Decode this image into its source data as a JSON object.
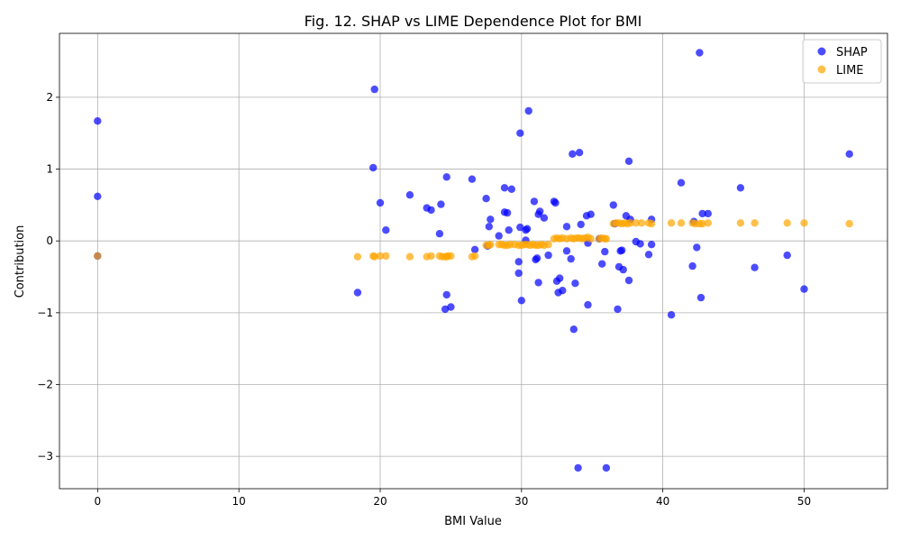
{
  "chart_data": {
    "type": "scatter",
    "title": "Fig. 12. SHAP vs LIME Dependence Plot for BMI",
    "xlabel": "BMI Value",
    "ylabel": "Contribution",
    "xlim": [
      -2.7,
      55.9
    ],
    "ylim": [
      -3.45,
      2.89
    ],
    "xticks": [
      0,
      10,
      20,
      30,
      40,
      50
    ],
    "yticks": [
      -3,
      -2,
      -1,
      0,
      1,
      2
    ],
    "grid": true,
    "legend_position": "top-right",
    "series": [
      {
        "name": "SHAP",
        "color": "#0000ff",
        "points": [
          [
            0,
            1.67
          ],
          [
            0,
            0.62
          ],
          [
            0,
            -0.21
          ],
          [
            18.4,
            -0.72
          ],
          [
            19.5,
            1.02
          ],
          [
            19.6,
            2.11
          ],
          [
            20.0,
            0.53
          ],
          [
            20.4,
            0.15
          ],
          [
            22.1,
            0.64
          ],
          [
            23.3,
            0.46
          ],
          [
            23.6,
            0.43
          ],
          [
            24.2,
            0.1
          ],
          [
            24.3,
            0.51
          ],
          [
            24.6,
            -0.95
          ],
          [
            24.7,
            0.89
          ],
          [
            24.7,
            -0.75
          ],
          [
            25.0,
            -0.92
          ],
          [
            26.5,
            0.86
          ],
          [
            26.7,
            -0.12
          ],
          [
            27.5,
            0.59
          ],
          [
            27.6,
            -0.07
          ],
          [
            27.7,
            0.2
          ],
          [
            27.8,
            0.3
          ],
          [
            28.4,
            0.07
          ],
          [
            28.8,
            0.74
          ],
          [
            28.8,
            0.4
          ],
          [
            29.0,
            0.39
          ],
          [
            29.1,
            0.15
          ],
          [
            29.3,
            0.72
          ],
          [
            29.8,
            -0.29
          ],
          [
            29.8,
            -0.45
          ],
          [
            29.9,
            0.19
          ],
          [
            29.9,
            1.5
          ],
          [
            30.0,
            -0.83
          ],
          [
            30.3,
            0.01
          ],
          [
            30.3,
            0.15
          ],
          [
            30.4,
            0.17
          ],
          [
            30.5,
            1.81
          ],
          [
            30.9,
            0.55
          ],
          [
            31.0,
            -0.26
          ],
          [
            31.1,
            -0.24
          ],
          [
            31.2,
            0.37
          ],
          [
            31.2,
            -0.58
          ],
          [
            31.3,
            0.41
          ],
          [
            31.6,
            0.32
          ],
          [
            31.9,
            -0.2
          ],
          [
            32.3,
            0.55
          ],
          [
            32.4,
            0.53
          ],
          [
            32.5,
            -0.56
          ],
          [
            32.6,
            -0.72
          ],
          [
            32.7,
            -0.52
          ],
          [
            32.9,
            -0.69
          ],
          [
            33.2,
            0.2
          ],
          [
            33.2,
            -0.14
          ],
          [
            33.5,
            -0.25
          ],
          [
            33.6,
            1.21
          ],
          [
            33.7,
            -1.23
          ],
          [
            33.8,
            -0.59
          ],
          [
            34.0,
            -3.16
          ],
          [
            34.1,
            1.23
          ],
          [
            34.2,
            0.23
          ],
          [
            34.6,
            0.35
          ],
          [
            34.7,
            -0.03
          ],
          [
            34.7,
            -0.89
          ],
          [
            34.9,
            0.37
          ],
          [
            35.5,
            0.03
          ],
          [
            35.7,
            -0.32
          ],
          [
            35.9,
            -0.15
          ],
          [
            36.0,
            -3.16
          ],
          [
            36.5,
            0.5
          ],
          [
            36.6,
            0.24
          ],
          [
            36.8,
            -0.95
          ],
          [
            36.9,
            -0.36
          ],
          [
            37.0,
            -0.14
          ],
          [
            37.1,
            -0.13
          ],
          [
            37.2,
            -0.4
          ],
          [
            37.4,
            0.35
          ],
          [
            37.6,
            1.11
          ],
          [
            37.6,
            -0.55
          ],
          [
            37.7,
            0.3
          ],
          [
            38.1,
            -0.01
          ],
          [
            38.4,
            -0.04
          ],
          [
            39.0,
            -0.19
          ],
          [
            39.2,
            -0.05
          ],
          [
            39.2,
            0.3
          ],
          [
            40.6,
            -1.03
          ],
          [
            41.3,
            0.81
          ],
          [
            42.1,
            -0.35
          ],
          [
            42.2,
            0.27
          ],
          [
            42.4,
            -0.09
          ],
          [
            42.6,
            2.62
          ],
          [
            42.7,
            -0.79
          ],
          [
            42.8,
            0.38
          ],
          [
            43.2,
            0.38
          ],
          [
            45.5,
            0.74
          ],
          [
            46.5,
            -0.37
          ],
          [
            48.8,
            -0.2
          ],
          [
            50.0,
            -0.67
          ],
          [
            53.2,
            1.21
          ]
        ]
      },
      {
        "name": "LIME",
        "color": "#ffa500",
        "points": [
          [
            0,
            -0.21
          ],
          [
            18.4,
            -0.22
          ],
          [
            19.5,
            -0.21
          ],
          [
            19.6,
            -0.22
          ],
          [
            20.0,
            -0.21
          ],
          [
            20.4,
            -0.21
          ],
          [
            22.1,
            -0.22
          ],
          [
            23.3,
            -0.22
          ],
          [
            23.6,
            -0.21
          ],
          [
            24.2,
            -0.21
          ],
          [
            24.4,
            -0.22
          ],
          [
            24.6,
            -0.22
          ],
          [
            24.7,
            -0.22
          ],
          [
            24.8,
            -0.21
          ],
          [
            25.0,
            -0.21
          ],
          [
            26.5,
            -0.22
          ],
          [
            26.7,
            -0.21
          ],
          [
            27.5,
            -0.06
          ],
          [
            27.7,
            -0.06
          ],
          [
            27.8,
            -0.05
          ],
          [
            28.4,
            -0.05
          ],
          [
            28.6,
            -0.05
          ],
          [
            28.8,
            -0.06
          ],
          [
            29.0,
            -0.06
          ],
          [
            29.2,
            -0.05
          ],
          [
            29.5,
            -0.05
          ],
          [
            29.8,
            -0.06
          ],
          [
            30.0,
            -0.06
          ],
          [
            30.2,
            -0.05
          ],
          [
            30.4,
            -0.05
          ],
          [
            30.6,
            -0.06
          ],
          [
            30.8,
            -0.05
          ],
          [
            31.0,
            -0.06
          ],
          [
            31.2,
            -0.06
          ],
          [
            31.4,
            -0.05
          ],
          [
            31.6,
            -0.06
          ],
          [
            31.9,
            -0.05
          ],
          [
            32.3,
            0.03
          ],
          [
            32.5,
            0.04
          ],
          [
            32.7,
            0.03
          ],
          [
            32.9,
            0.04
          ],
          [
            33.2,
            0.03
          ],
          [
            33.5,
            0.04
          ],
          [
            33.7,
            0.03
          ],
          [
            33.9,
            0.04
          ],
          [
            34.1,
            0.04
          ],
          [
            34.3,
            0.03
          ],
          [
            34.5,
            0.04
          ],
          [
            34.7,
            0.05
          ],
          [
            34.9,
            0.03
          ],
          [
            35.5,
            0.03
          ],
          [
            35.7,
            0.04
          ],
          [
            35.9,
            0.03
          ],
          [
            36.0,
            0.03
          ],
          [
            36.5,
            0.24
          ],
          [
            36.7,
            0.25
          ],
          [
            36.9,
            0.25
          ],
          [
            37.1,
            0.24
          ],
          [
            37.3,
            0.25
          ],
          [
            37.5,
            0.24
          ],
          [
            37.7,
            0.25
          ],
          [
            38.1,
            0.25
          ],
          [
            38.5,
            0.25
          ],
          [
            39.0,
            0.25
          ],
          [
            39.2,
            0.24
          ],
          [
            40.6,
            0.25
          ],
          [
            41.3,
            0.25
          ],
          [
            42.1,
            0.25
          ],
          [
            42.3,
            0.24
          ],
          [
            42.6,
            0.24
          ],
          [
            42.8,
            0.24
          ],
          [
            43.2,
            0.25
          ],
          [
            45.5,
            0.25
          ],
          [
            46.5,
            0.25
          ],
          [
            48.8,
            0.25
          ],
          [
            50.0,
            0.25
          ],
          [
            53.2,
            0.24
          ]
        ]
      }
    ]
  }
}
